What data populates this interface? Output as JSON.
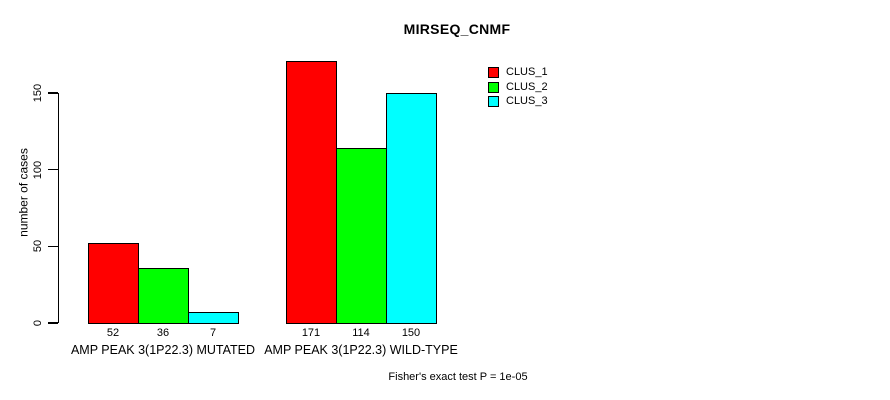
{
  "title": "MIRSEQ_CNMF",
  "footer": "Fisher's exact test P = 1e-05",
  "colors": {
    "clus_1": "#FF0000",
    "clus_2": "#00FF00",
    "clus_3": "#00FFFF",
    "axis": "#000000",
    "background": "#FFFFFF"
  },
  "chart_data": {
    "type": "bar",
    "title": "MIRSEQ_CNMF",
    "xlabel": "",
    "ylabel": "number of cases",
    "ylim": [
      0,
      175
    ],
    "yticks": [
      0,
      50,
      100,
      150
    ],
    "grid": false,
    "categories": [
      "AMP PEAK 3(1P22.3) MUTATED",
      "AMP PEAK 3(1P22.3) WILD-TYPE"
    ],
    "series": [
      {
        "name": "CLUS_1",
        "color": "#FF0000",
        "values": [
          52,
          171
        ]
      },
      {
        "name": "CLUS_2",
        "color": "#00FF00",
        "values": [
          36,
          114
        ]
      },
      {
        "name": "CLUS_3",
        "color": "#00FFFF",
        "values": [
          7,
          150
        ]
      }
    ],
    "legend": {
      "position": "top-right",
      "entries": [
        "CLUS_1",
        "CLUS_2",
        "CLUS_3"
      ]
    },
    "annotation": "Fisher's exact test P = 1e-05"
  }
}
